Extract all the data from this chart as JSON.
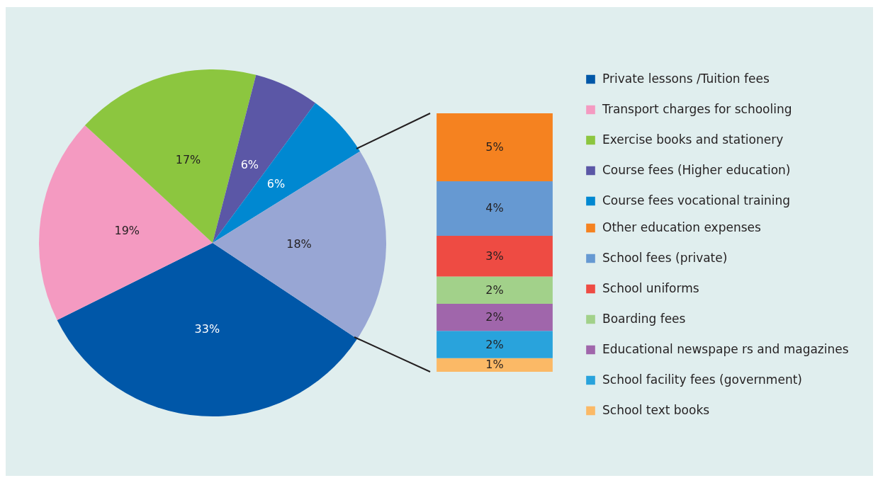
{
  "chart_data": [
    {
      "type": "pie",
      "categories": [
        "Private lessons /Tuition fees",
        "Transport charges for schooling",
        "Exercise books and stationery",
        "Course fees (Higher education)",
        "Course fees vocational training",
        null
      ],
      "values": [
        33,
        19,
        17,
        6,
        6,
        18
      ],
      "value_labels": [
        "33%",
        "19%",
        "17%",
        "6%",
        "6%",
        "18%"
      ],
      "colors": [
        "#0057a8",
        "#f49ac1",
        "#8cc63f",
        "#5b57a6",
        "#0088d1",
        "#98a6d4"
      ],
      "legend": "right"
    },
    {
      "type": "bar",
      "stacked": true,
      "categories": [
        null
      ],
      "legend": "right",
      "series": [
        {
          "name": "School text books",
          "color": "#fbb966",
          "values": [
            1
          ],
          "value_labels": [
            "1%"
          ]
        },
        {
          "name": "School facility fees (government)",
          "color": "#29a3dc",
          "values": [
            2
          ],
          "value_labels": [
            "2%"
          ]
        },
        {
          "name": "Educational newspape rs and magazines",
          "color": "#a066ab",
          "values": [
            2
          ],
          "value_labels": [
            "2%"
          ]
        },
        {
          "name": "Boarding fees",
          "color": "#a2d18a",
          "values": [
            2
          ],
          "value_labels": [
            "2%"
          ]
        },
        {
          "name": "School uniforms",
          "color": "#ee4b43",
          "values": [
            3
          ],
          "value_labels": [
            "3%"
          ]
        },
        {
          "name": "School fees (private)",
          "color": "#6699d2",
          "values": [
            4
          ],
          "value_labels": [
            "4%"
          ]
        },
        {
          "name": "Other education expenses",
          "color": "#f58220",
          "values": [
            5
          ],
          "value_labels": [
            "5%"
          ]
        }
      ]
    }
  ]
}
